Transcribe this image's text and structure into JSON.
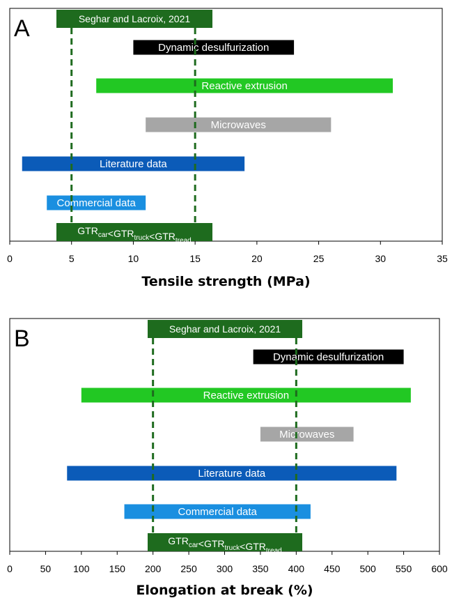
{
  "chart_data": [
    {
      "type": "bar",
      "orientation": "horizontal-range",
      "panel_letter": "A",
      "xlabel": "Tensile strength (MPa)",
      "xlim": [
        0,
        35
      ],
      "xticks": [
        0,
        5,
        10,
        15,
        20,
        25,
        30,
        35
      ],
      "grid": false,
      "ranges": [
        {
          "label": "Dynamic desulfurization",
          "min": 10,
          "max": 23,
          "color": "#000000",
          "text_color": "#ffffff"
        },
        {
          "label": "Reactive extrusion",
          "min": 7,
          "max": 31,
          "color": "#22c823",
          "text_color": "#ffffff"
        },
        {
          "label": "Microwaves",
          "min": 11,
          "max": 26,
          "color": "#a6a6a6",
          "text_color": "#ffffff"
        },
        {
          "label": "Literature data",
          "min": 1,
          "max": 19,
          "color": "#0b5bb8",
          "text_color": "#ffffff"
        },
        {
          "label": "Commercial data",
          "min": 3,
          "max": 11,
          "color": "#1a8fe0",
          "text_color": "#ffffff"
        }
      ],
      "reference_lines": [
        5,
        15
      ],
      "reference_color": "#1e6b1e",
      "top_box": {
        "label": "Seghar and Lacroix, 2021",
        "color": "#1e6b1e"
      },
      "bottom_box": {
        "color": "#1e6b1e",
        "parts": [
          {
            "text": "GTR",
            "sub": "car"
          },
          {
            "text": "<GTR",
            "sub": "truck"
          },
          {
            "text": "<GTR",
            "sub": "tread"
          }
        ]
      }
    },
    {
      "type": "bar",
      "orientation": "horizontal-range",
      "panel_letter": "B",
      "xlabel": "Elongation at break (%)",
      "xlim": [
        0,
        600
      ],
      "xticks": [
        0,
        50,
        100,
        150,
        200,
        250,
        300,
        350,
        400,
        450,
        500,
        550,
        600
      ],
      "grid": false,
      "ranges": [
        {
          "label": "Dynamic desulfurization",
          "min": 340,
          "max": 550,
          "color": "#000000",
          "text_color": "#ffffff"
        },
        {
          "label": "Reactive extrusion",
          "min": 100,
          "max": 560,
          "color": "#22c823",
          "text_color": "#ffffff"
        },
        {
          "label": "Microwaves",
          "min": 350,
          "max": 480,
          "color": "#a6a6a6",
          "text_color": "#ffffff"
        },
        {
          "label": "Literature data",
          "min": 80,
          "max": 540,
          "color": "#0b5bb8",
          "text_color": "#ffffff"
        },
        {
          "label": "Commercial data",
          "min": 160,
          "max": 420,
          "color": "#1a8fe0",
          "text_color": "#ffffff"
        }
      ],
      "reference_lines": [
        200,
        400
      ],
      "reference_color": "#1e6b1e",
      "top_box": {
        "label": "Seghar and Lacroix, 2021",
        "color": "#1e6b1e"
      },
      "bottom_box": {
        "color": "#1e6b1e",
        "parts": [
          {
            "text": "GTR",
            "sub": "car"
          },
          {
            "text": "<GTR",
            "sub": "truck"
          },
          {
            "text": "<GTR",
            "sub": "tread"
          }
        ]
      }
    }
  ]
}
